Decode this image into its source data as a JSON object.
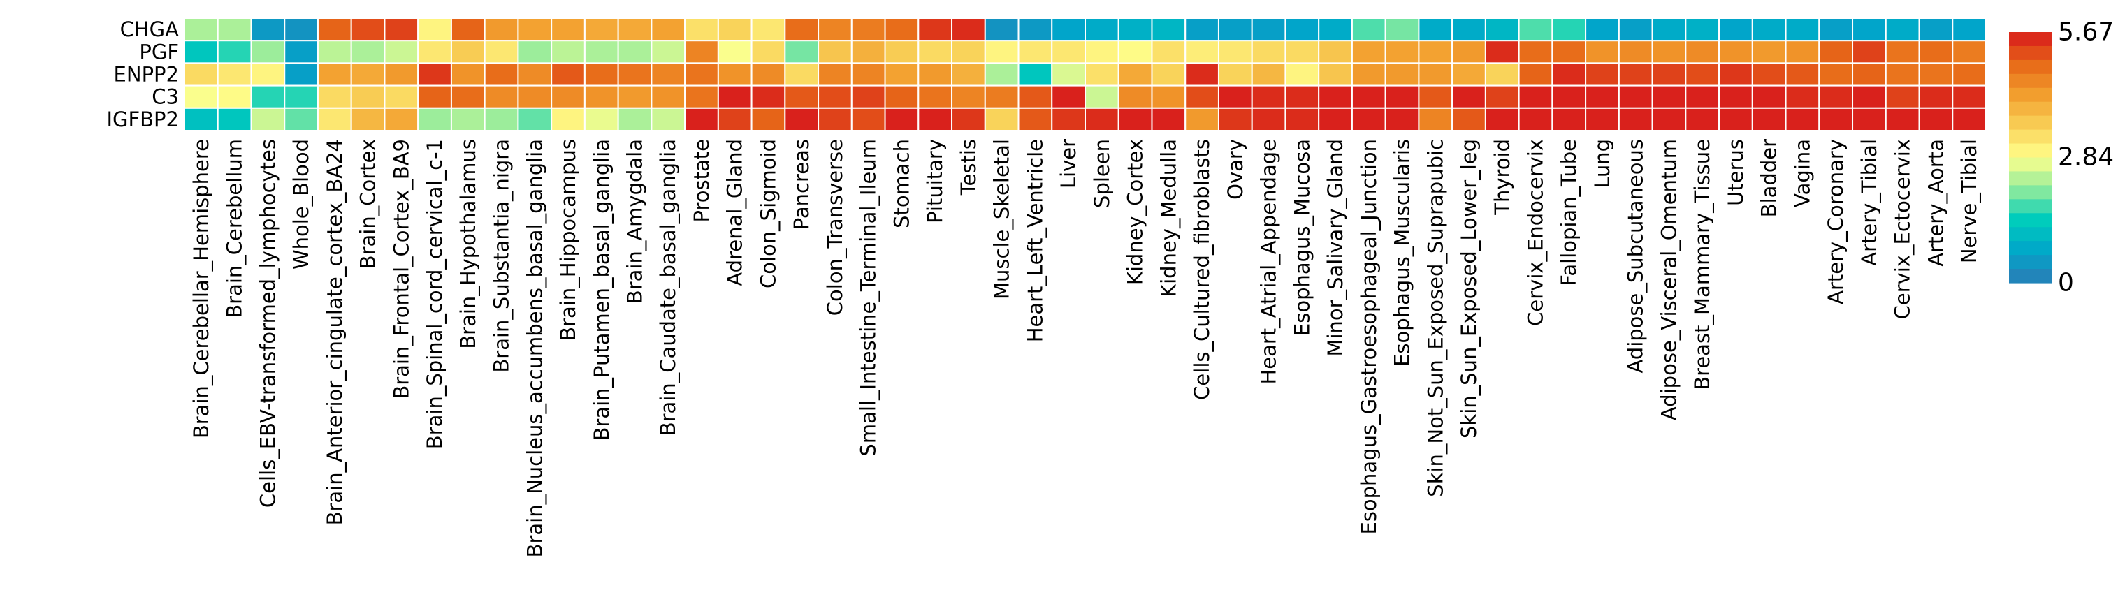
{
  "chart_data": {
    "type": "heatmap",
    "rows": [
      "CHGA",
      "PGF",
      "ENPP2",
      "C3",
      "IGFBP2"
    ],
    "columns": [
      "Brain_Cerebellar_Hemisphere",
      "Brain_Cerebellum",
      "Cells_EBV-transformed_lymphocytes",
      "Whole_Blood",
      "Brain_Anterior_cingulate_cortex_BA24",
      "Brain_Cortex",
      "Brain_Frontal_Cortex_BA9",
      "Brain_Spinal_cord_cervical_c-1",
      "Brain_Hypothalamus",
      "Brain_Substantia_nigra",
      "Brain_Nucleus_accumbens_basal_ganglia",
      "Brain_Hippocampus",
      "Brain_Putamen_basal_ganglia",
      "Brain_Amygdala",
      "Brain_Caudate_basal_ganglia",
      "Prostate",
      "Adrenal_Gland",
      "Colon_Sigmoid",
      "Pancreas",
      "Colon_Transverse",
      "Small_Intestine_Terminal_Ileum",
      "Stomach",
      "Pituitary",
      "Testis",
      "Muscle_Skeletal",
      "Heart_Left_Ventricle",
      "Liver",
      "Spleen",
      "Kidney_Cortex",
      "Kidney_Medulla",
      "Cells_Cultured_fibroblasts",
      "Ovary",
      "Heart_Atrial_Appendage",
      "Esophagus_Mucosa",
      "Minor_Salivary_Gland",
      "Esophagus_Gastroesophageal_Junction",
      "Esophagus_Muscularis",
      "Skin_Not_Sun_Exposed_Suprapubic",
      "Skin_Sun_Exposed_Lower_leg",
      "Thyroid",
      "Cervix_Endocervix",
      "Fallopian_Tube",
      "Lung",
      "Adipose_Subcutaneous",
      "Adipose_Visceral_Omentum",
      "Breast_Mammary_Tissue",
      "Uterus",
      "Bladder",
      "Vagina",
      "Artery_Coronary",
      "Artery_Tibial",
      "Cervix_Ectocervix",
      "Artery_Aorta",
      "Nerve_Tibial"
    ],
    "values": [
      [
        2.3,
        2.3,
        0.5,
        0.4,
        5.0,
        5.2,
        5.3,
        3.0,
        5.0,
        4.3,
        4.2,
        4.2,
        4.1,
        4.1,
        4.2,
        3.3,
        3.5,
        3.2,
        4.9,
        4.6,
        4.7,
        4.9,
        5.4,
        5.5,
        0.4,
        0.5,
        0.7,
        0.8,
        0.9,
        1.0,
        0.6,
        0.6,
        0.6,
        0.7,
        0.8,
        1.8,
        2.0,
        0.8,
        0.8,
        1.0,
        1.8,
        1.6,
        0.7,
        0.6,
        0.8,
        0.9,
        0.7,
        0.8,
        0.8,
        0.6,
        0.7,
        0.8,
        0.6,
        0.7
      ],
      [
        1.3,
        1.6,
        2.2,
        0.6,
        2.4,
        2.3,
        2.5,
        3.2,
        3.6,
        3.2,
        2.2,
        2.4,
        2.3,
        2.3,
        2.5,
        4.6,
        2.8,
        3.4,
        2.0,
        3.7,
        4.0,
        3.6,
        3.4,
        3.5,
        3.0,
        3.2,
        3.2,
        3.0,
        2.9,
        3.3,
        3.1,
        3.2,
        3.4,
        3.4,
        3.7,
        4.2,
        4.2,
        4.2,
        4.3,
        5.5,
        4.9,
        4.9,
        4.4,
        4.5,
        4.4,
        4.5,
        4.4,
        4.3,
        4.4,
        5.0,
        5.3,
        4.8,
        4.9,
        4.7
      ],
      [
        3.4,
        3.2,
        3.0,
        0.6,
        4.2,
        4.1,
        4.3,
        5.4,
        4.4,
        4.9,
        4.5,
        5.1,
        4.9,
        4.8,
        4.6,
        4.8,
        4.4,
        4.5,
        3.4,
        4.6,
        4.6,
        4.2,
        4.3,
        4.0,
        2.3,
        1.3,
        2.6,
        3.3,
        4.1,
        3.5,
        5.5,
        3.5,
        3.9,
        3.0,
        3.7,
        4.3,
        4.3,
        4.3,
        4.1,
        3.5,
        5.0,
        5.5,
        5.3,
        5.3,
        5.3,
        5.2,
        5.4,
        5.2,
        5.1,
        4.9,
        5.0,
        4.8,
        4.8,
        4.9
      ],
      [
        2.8,
        2.9,
        1.6,
        1.6,
        3.4,
        3.6,
        3.4,
        5.0,
        4.9,
        4.5,
        4.5,
        4.5,
        4.4,
        4.3,
        4.4,
        4.8,
        5.6,
        5.5,
        5.1,
        5.2,
        5.3,
        5.0,
        4.8,
        4.6,
        4.7,
        5.1,
        5.6,
        2.5,
        4.5,
        4.4,
        5.2,
        5.6,
        5.5,
        5.5,
        5.6,
        5.6,
        5.6,
        5.1,
        5.6,
        5.3,
        5.6,
        5.6,
        5.6,
        5.6,
        5.6,
        5.6,
        5.6,
        5.6,
        5.5,
        5.5,
        5.6,
        5.3,
        5.5,
        5.5
      ],
      [
        1.2,
        1.3,
        2.5,
        1.9,
        3.2,
        3.9,
        4.1,
        2.2,
        2.3,
        2.2,
        1.9,
        3.0,
        2.7,
        2.3,
        2.5,
        5.6,
        5.3,
        5.0,
        5.6,
        5.3,
        5.2,
        5.6,
        5.6,
        5.4,
        3.5,
        5.1,
        5.4,
        5.5,
        5.6,
        5.6,
        4.3,
        5.4,
        5.5,
        5.5,
        5.6,
        5.6,
        5.6,
        4.6,
        5.1,
        5.6,
        5.6,
        5.6,
        5.6,
        5.6,
        5.6,
        5.6,
        5.6,
        5.6,
        5.6,
        5.6,
        5.6,
        5.6,
        5.6,
        5.6
      ]
    ],
    "colorbar": {
      "min": 0,
      "max": 5.67,
      "ticks": [
        0,
        2.84,
        5.67
      ],
      "tick_labels": [
        "0",
        "2.84",
        "5.67"
      ]
    },
    "colormap": [
      "#2c7bb6",
      "#00a6ca",
      "#00ccbc",
      "#90eb9d",
      "#ffff8c",
      "#f9d057",
      "#f29e2e",
      "#e76818",
      "#d7191c"
    ]
  }
}
